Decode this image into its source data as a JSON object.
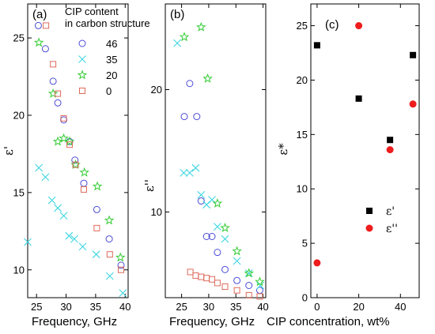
{
  "chart_data": [
    {
      "type": "scatter",
      "panel_label": "(a)",
      "xlabel": "Frequency, GHz",
      "ylabel": "ε'",
      "xlim": [
        23.5,
        40.5
      ],
      "ylim": [
        8.2,
        27.2
      ],
      "xticks": [
        25,
        30,
        35,
        40
      ],
      "yticks": [
        10,
        15,
        20,
        25
      ],
      "legend": {
        "title": [
          "CIP content",
          "in carbon structure"
        ],
        "placement": "top-right"
      },
      "series": [
        {
          "name": "46",
          "marker": "circle",
          "color": "#4b4bd6",
          "points": [
            [
              25.3,
              25.8
            ],
            [
              26.5,
              24.3
            ],
            [
              27.8,
              22.2
            ],
            [
              28.6,
              20.8
            ],
            [
              29.6,
              19.7
            ],
            [
              30.6,
              18.3
            ],
            [
              31.5,
              17.1
            ],
            [
              33.0,
              15.6
            ],
            [
              35.2,
              13.9
            ],
            [
              37.3,
              12.0
            ],
            [
              39.3,
              10.3
            ]
          ]
        },
        {
          "name": "35",
          "marker": "x",
          "color": "#3ed6e0",
          "points": [
            [
              23.5,
              11.8
            ],
            [
              25.4,
              16.6
            ],
            [
              26.5,
              16.0
            ],
            [
              27.6,
              14.5
            ],
            [
              28.6,
              14.0
            ],
            [
              29.6,
              13.5
            ],
            [
              30.5,
              12.2
            ],
            [
              31.4,
              12.0
            ],
            [
              32.8,
              11.5
            ],
            [
              35.1,
              11.0
            ],
            [
              37.4,
              9.6
            ],
            [
              39.6,
              8.5
            ]
          ]
        },
        {
          "name": "20",
          "marker": "star",
          "color": "#33cc33",
          "points": [
            [
              25.4,
              24.7
            ],
            [
              27.8,
              21.4
            ],
            [
              28.6,
              18.3
            ],
            [
              29.6,
              18.5
            ],
            [
              30.6,
              18.3
            ],
            [
              31.6,
              16.8
            ],
            [
              33.1,
              16.3
            ],
            [
              35.3,
              15.4
            ],
            [
              37.3,
              13.2
            ],
            [
              39.2,
              10.8
            ]
          ]
        },
        {
          "name": "0",
          "marker": "square",
          "color": "#dd6a5a",
          "points": [
            [
              26.6,
              25.8
            ],
            [
              27.8,
              23.3
            ],
            [
              28.6,
              21.4
            ],
            [
              29.6,
              19.8
            ],
            [
              30.6,
              18.1
            ],
            [
              31.6,
              16.8
            ],
            [
              33.0,
              15.2
            ],
            [
              35.2,
              12.7
            ],
            [
              37.4,
              11.0
            ],
            [
              39.3,
              10.0
            ]
          ]
        }
      ]
    },
    {
      "type": "scatter",
      "panel_label": "(b)",
      "xlabel": "Frequency, GHz",
      "ylabel": "ε''",
      "xlim": [
        22.0,
        40.5
      ],
      "ylim": [
        3.0,
        27.0
      ],
      "xticks": [
        25,
        30,
        35,
        40
      ],
      "yticks": [
        10,
        20
      ],
      "series": [
        {
          "name": "46",
          "marker": "circle",
          "color": "#4b4bd6",
          "points": [
            [
              25.5,
              17.8
            ],
            [
              26.5,
              20.5
            ],
            [
              27.8,
              17.8
            ],
            [
              28.6,
              10.9
            ],
            [
              29.6,
              8.0
            ],
            [
              30.6,
              8.0
            ],
            [
              31.6,
              6.7
            ],
            [
              33.0,
              5.3
            ],
            [
              35.2,
              4.4
            ],
            [
              37.4,
              4.0
            ],
            [
              39.4,
              3.6
            ]
          ]
        },
        {
          "name": "35",
          "marker": "x",
          "color": "#3ed6e0",
          "points": [
            [
              24.2,
              23.8
            ],
            [
              25.4,
              13.2
            ],
            [
              26.5,
              13.2
            ],
            [
              27.6,
              13.6
            ],
            [
              28.6,
              11.4
            ],
            [
              29.6,
              10.6
            ],
            [
              30.6,
              11.0
            ],
            [
              31.6,
              8.8
            ],
            [
              33.0,
              7.8
            ],
            [
              35.2,
              6.0
            ],
            [
              37.4,
              5.0
            ],
            [
              39.5,
              4.0
            ]
          ]
        },
        {
          "name": "20",
          "marker": "star",
          "color": "#33cc33",
          "points": [
            [
              25.5,
              24.3
            ],
            [
              28.6,
              25.1
            ],
            [
              29.8,
              20.9
            ],
            [
              31.6,
              10.7
            ],
            [
              33.0,
              8.7
            ],
            [
              35.2,
              6.8
            ],
            [
              37.4,
              5.0
            ],
            [
              39.4,
              4.3
            ]
          ]
        },
        {
          "name": "0",
          "marker": "square",
          "color": "#dd6a5a",
          "points": [
            [
              26.6,
              5.1
            ],
            [
              27.6,
              4.8
            ],
            [
              28.6,
              4.7
            ],
            [
              29.6,
              4.6
            ],
            [
              30.6,
              4.5
            ],
            [
              31.6,
              4.2
            ],
            [
              33.0,
              3.9
            ],
            [
              35.2,
              3.6
            ],
            [
              37.4,
              3.2
            ],
            [
              39.4,
              3.1
            ]
          ]
        }
      ]
    },
    {
      "type": "scatter",
      "panel_label": "(c)",
      "xlabel": "CIP concentration, wt%",
      "ylabel": "ε*",
      "xlim": [
        -3,
        49
      ],
      "ylim": [
        0,
        27
      ],
      "xticks": [
        0,
        20,
        40
      ],
      "yticks": [
        0,
        5,
        10,
        15,
        20,
        25
      ],
      "series": [
        {
          "name": "ε'",
          "marker": "filled-square",
          "color": "#000000",
          "points": [
            [
              0,
              23.2
            ],
            [
              20,
              18.3
            ],
            [
              35,
              14.5
            ],
            [
              46,
              22.3
            ]
          ]
        },
        {
          "name": "ε''",
          "marker": "filled-circle",
          "color": "#ee1c1c",
          "points": [
            [
              0,
              3.2
            ],
            [
              20,
              25.0
            ],
            [
              35,
              13.6
            ],
            [
              46,
              17.8
            ]
          ]
        }
      ]
    }
  ]
}
